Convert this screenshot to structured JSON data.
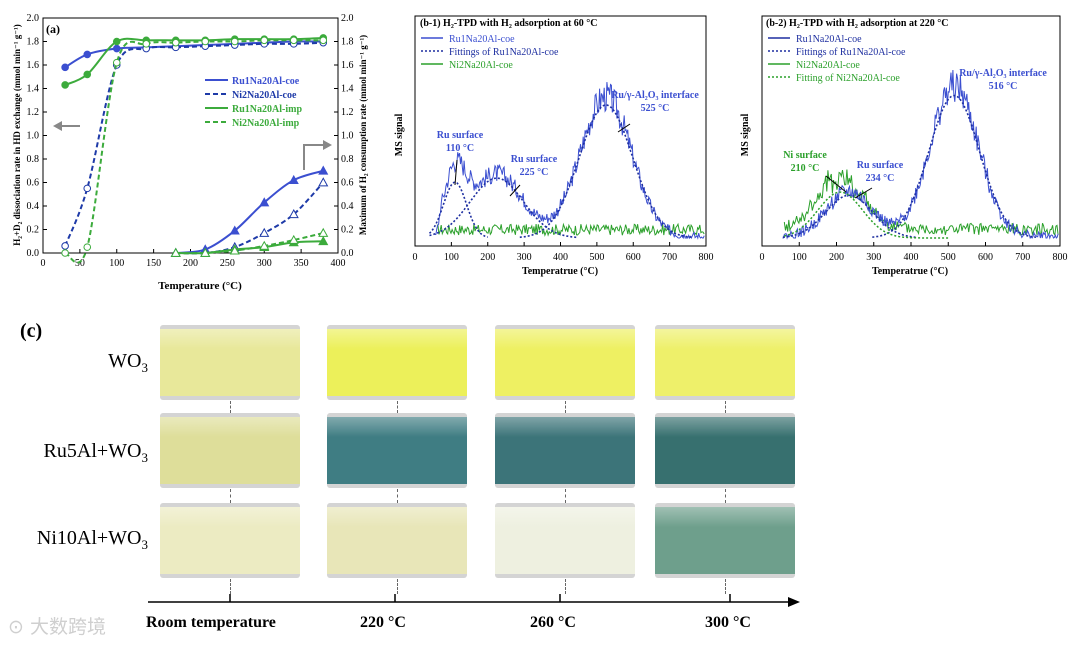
{
  "chart_data": [
    {
      "panel": "(a)",
      "type": "line",
      "xlabel": "Temperature (°C)",
      "ylabel_left": "H₂+D₂ dissociation rate in HD exchange (mmol min⁻¹ g⁻¹)",
      "ylabel_right": "Maximum of H₂ consumption rate (mmol min⁻¹ g⁻¹)",
      "xlim": [
        0,
        400
      ],
      "ylim_left": [
        0,
        2.0
      ],
      "ylim_right": [
        0,
        2.0
      ],
      "xticks": [
        "0",
        "50",
        "100",
        "150",
        "200",
        "250",
        "300",
        "350",
        "400"
      ],
      "yticks_left": [
        "0.0",
        "0.2",
        "0.4",
        "0.6",
        "0.8",
        "1.0",
        "1.2",
        "1.4",
        "1.6",
        "1.8",
        "2.0"
      ],
      "yticks_right": [
        "0.0",
        "0.2",
        "0.4",
        "0.6",
        "0.8",
        "1.0",
        "1.2",
        "1.4",
        "1.6",
        "1.8",
        "2.0"
      ],
      "legend": [
        "Ru1Na20Al-coe",
        "Ni2Na20Al-coe",
        "Ru1Na20Al-imp",
        "Ni2Na20Al-imp"
      ],
      "series": [
        {
          "name": "Ru1Na20Al-coe (HD exchange)",
          "color": "#3b4fd0",
          "dash": false,
          "marker": "filled-circle",
          "x": [
            30,
            60,
            100,
            140,
            180,
            220,
            260,
            300,
            340,
            380
          ],
          "y": [
            1.58,
            1.69,
            1.74,
            1.75,
            1.76,
            1.77,
            1.78,
            1.79,
            1.8,
            1.8
          ]
        },
        {
          "name": "Ni2Na20Al-coe (HD exchange)",
          "color": "#1e3aa8",
          "dash": true,
          "marker": "open-circle",
          "x": [
            30,
            60,
            100,
            140,
            180,
            220,
            260,
            300,
            340,
            380
          ],
          "y": [
            0.06,
            0.55,
            1.6,
            1.74,
            1.75,
            1.76,
            1.77,
            1.78,
            1.78,
            1.79
          ]
        },
        {
          "name": "Ru1Na20Al-imp (HD exchange)",
          "color": "#3cab3c",
          "dash": false,
          "marker": "filled-circle",
          "x": [
            30,
            60,
            100,
            140,
            180,
            220,
            260,
            300,
            340,
            380
          ],
          "y": [
            1.43,
            1.52,
            1.8,
            1.81,
            1.81,
            1.81,
            1.82,
            1.82,
            1.82,
            1.83
          ]
        },
        {
          "name": "Ni2Na20Al-imp (HD exchange)",
          "color": "#3cab3c",
          "dash": true,
          "marker": "open-circle",
          "x": [
            30,
            60,
            100,
            140,
            180,
            220,
            260,
            300,
            340,
            380
          ],
          "y": [
            0.0,
            0.05,
            1.62,
            1.78,
            1.79,
            1.8,
            1.8,
            1.81,
            1.81,
            1.81
          ]
        },
        {
          "name": "Ru1Na20Al-coe (H2 consumption)",
          "color": "#3b4fd0",
          "dash": false,
          "marker": "filled-triangle",
          "axis": "right",
          "x": [
            180,
            220,
            260,
            300,
            340,
            380
          ],
          "y": [
            0.0,
            0.03,
            0.19,
            0.43,
            0.62,
            0.7
          ]
        },
        {
          "name": "Ni2Na20Al-coe (H2 consumption)",
          "color": "#1e3aa8",
          "dash": true,
          "marker": "open-triangle",
          "axis": "right",
          "x": [
            180,
            220,
            260,
            300,
            340,
            380
          ],
          "y": [
            0.0,
            0.0,
            0.05,
            0.17,
            0.33,
            0.6
          ]
        },
        {
          "name": "Ru1Na20Al-imp (H2 consumption)",
          "color": "#3cab3c",
          "dash": false,
          "marker": "filled-triangle",
          "axis": "right",
          "x": [
            180,
            220,
            260,
            300,
            340,
            380
          ],
          "y": [
            0.0,
            0.0,
            0.03,
            0.05,
            0.09,
            0.1
          ]
        },
        {
          "name": "Ni2Na20Al-imp (H2 consumption)",
          "color": "#3cab3c",
          "dash": true,
          "marker": "open-triangle",
          "axis": "right",
          "x": [
            180,
            220,
            260,
            300,
            340,
            380
          ],
          "y": [
            0.0,
            0.0,
            0.02,
            0.06,
            0.11,
            0.17
          ]
        }
      ]
    },
    {
      "panel": "(b-1)",
      "type": "line",
      "title": "(b-1) H₂-TPD with H₂ adsorption at 60 °C",
      "xlabel": "Temperatrue (°C)",
      "ylabel": "MS signal",
      "xlim": [
        0,
        800
      ],
      "xticks": [
        "0",
        "100",
        "200",
        "300",
        "400",
        "500",
        "600",
        "700",
        "800"
      ],
      "legend": [
        "Ru1Na20Al-coe",
        "Fittings of Ru1Na20Al-coe",
        "Ni2Na20Al-coe"
      ],
      "annotations": [
        {
          "text": "Ru surface",
          "sub": "110 °C",
          "x": 110
        },
        {
          "text": "Ru surface",
          "sub": "225 °C",
          "x": 225
        },
        {
          "text": "Ru/γ-Al₂O₃ interface",
          "sub": "525 °C",
          "x": 525
        }
      ],
      "peaks": [
        {
          "center": 110,
          "height": 0.42,
          "width": 30
        },
        {
          "center": 225,
          "height": 0.45,
          "width": 70
        },
        {
          "center": 525,
          "height": 1.0,
          "width": 70
        }
      ]
    },
    {
      "panel": "(b-2)",
      "type": "line",
      "title": "(b-2) H₂-TPD with H₂ adsorption at 220 °C",
      "xlabel": "Temperatrue (°C)",
      "ylabel": "MS signal",
      "xlim": [
        0,
        800
      ],
      "xticks": [
        "0",
        "100",
        "200",
        "300",
        "400",
        "500",
        "600",
        "700",
        "800"
      ],
      "legend": [
        "Ru1Na20Al-coe",
        "Fittings of Ru1Na20Al-coe",
        "Ni2Na20Al-coe",
        "Fitting of Ni2Na20Al-coe"
      ],
      "annotations": [
        {
          "text": "Ni surface",
          "sub": "210 °C",
          "x": 210
        },
        {
          "text": "Ru surface",
          "sub": "234 °C",
          "x": 234
        },
        {
          "text": "Ru/γ-Al₂O₃ interface",
          "sub": "516 °C",
          "x": 516
        }
      ],
      "peaks": [
        {
          "center": 234,
          "height": 0.3,
          "width": 60
        },
        {
          "center": 516,
          "height": 1.0,
          "width": 65
        },
        {
          "center": 210,
          "height": 0.34,
          "width": 60
        }
      ]
    }
  ],
  "panel_c": {
    "label": "(c)",
    "rows": [
      "WO₃",
      "Ru5Al+WO₃",
      "Ni10Al+WO₃"
    ],
    "temperatures": [
      "Room temperature",
      "220 °C",
      "260 °C",
      "300 °C"
    ],
    "colors": [
      [
        "#e8e89a",
        "#ecf05a",
        "#eef062",
        "#eef06a"
      ],
      [
        "#dede9a",
        "#3f7d83",
        "#3c7479",
        "#37706f"
      ],
      [
        "#ecebc2",
        "#e8e6b8",
        "#eef0e0",
        "#6e9f8c"
      ]
    ]
  },
  "watermark": "大数跨境"
}
